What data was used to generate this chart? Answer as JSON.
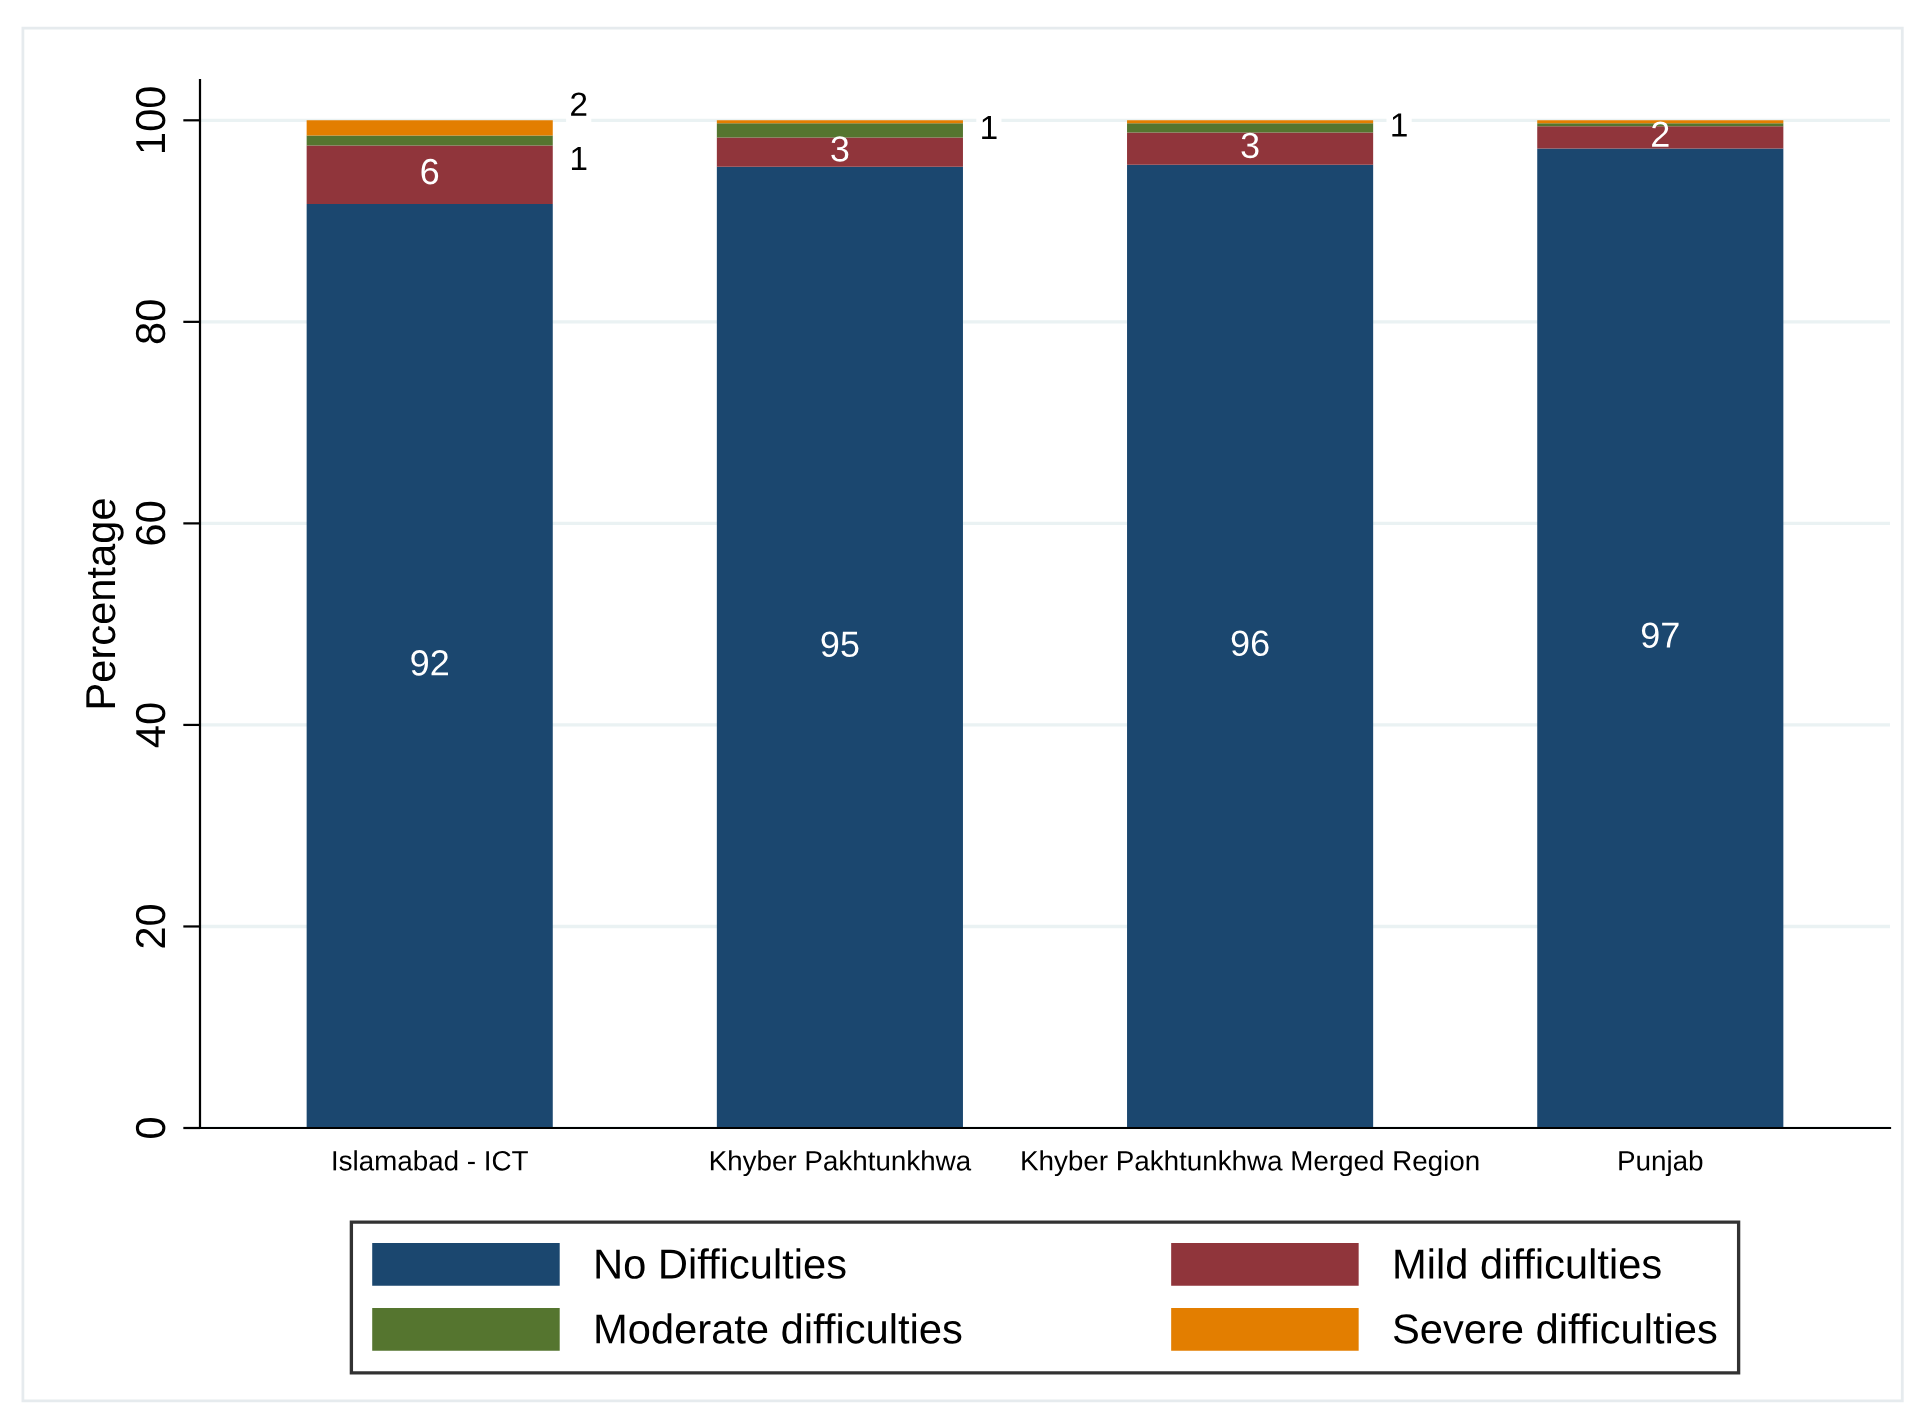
{
  "chart_data": {
    "type": "bar",
    "stacked": true,
    "ylabel": "Percentage",
    "categories": [
      "Islamabad - ICT",
      "Khyber Pakhtunkhwa",
      "Khyber Pakhtunkhwa Merged Region",
      "Punjab"
    ],
    "series": [
      {
        "name": "No Difficulties",
        "color": "#1b476f",
        "values": [
          91.7,
          95.4,
          95.6,
          97.2
        ],
        "value_labels": [
          "92",
          "95",
          "96",
          "97"
        ]
      },
      {
        "name": "Mild difficulties",
        "color": "#90353b",
        "values": [
          5.8,
          2.9,
          3.2,
          2.2
        ],
        "value_labels": [
          "6",
          "3",
          "3",
          "2"
        ]
      },
      {
        "name": "Moderate difficulties",
        "color": "#55752f",
        "values": [
          1.0,
          1.4,
          0.9,
          0.3
        ],
        "value_labels": [
          "1",
          "1",
          "1",
          null
        ]
      },
      {
        "name": "Severe difficulties",
        "color": "#e37e00",
        "values": [
          1.5,
          0.3,
          0.3,
          0.3
        ],
        "value_labels": [
          "2",
          null,
          null,
          null
        ]
      }
    ],
    "ylim": [
      0,
      104
    ],
    "yticks": [
      0,
      20,
      40,
      60,
      80,
      100
    ],
    "grid": "y",
    "legend": "bottom"
  }
}
